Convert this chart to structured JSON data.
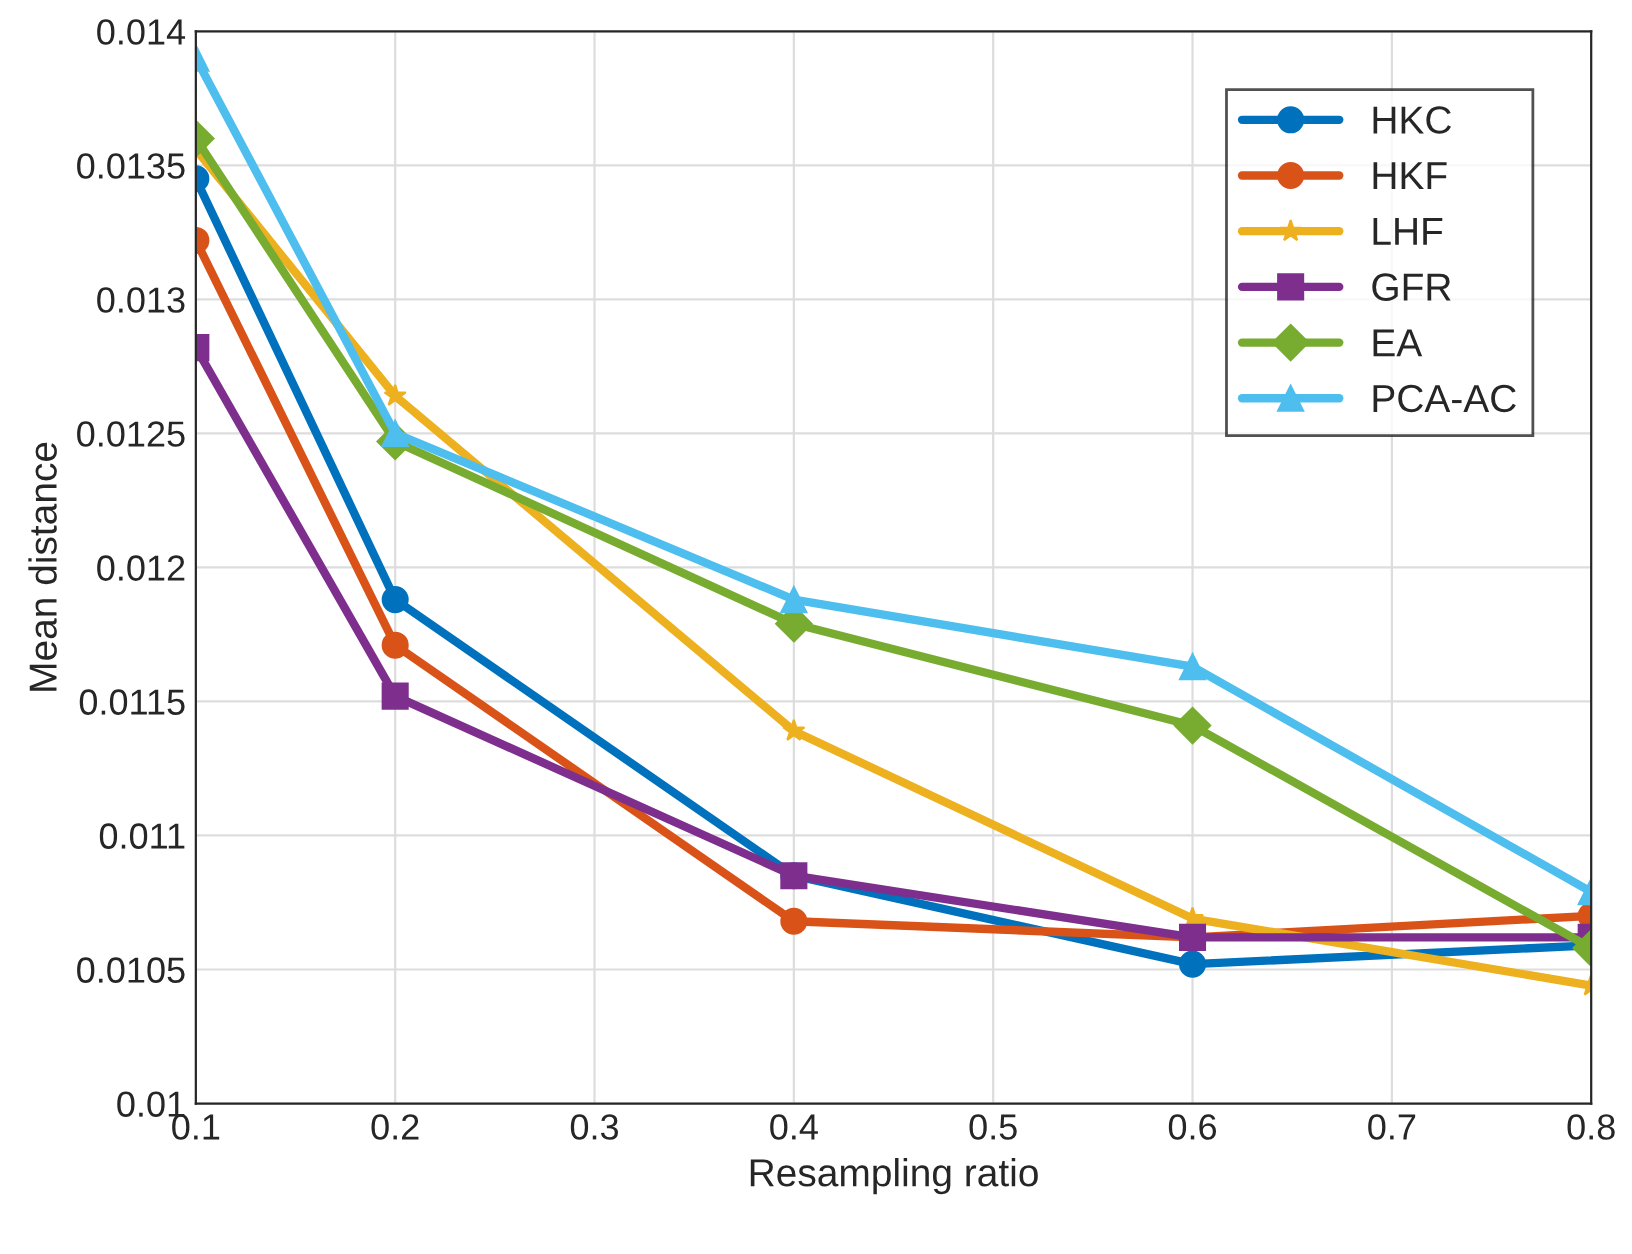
{
  "chart_data": {
    "type": "line",
    "xlabel": "Resampling ratio",
    "ylabel": "Mean distance",
    "x": [
      0.1,
      0.2,
      0.4,
      0.6,
      0.8
    ],
    "series": [
      {
        "name": "HKC",
        "color": "#0072bd",
        "marker": "circle",
        "values": [
          0.01345,
          0.01188,
          0.01085,
          0.01052,
          0.01059
        ]
      },
      {
        "name": "HKF",
        "color": "#d95319",
        "marker": "circle",
        "values": [
          0.01322,
          0.01171,
          0.01068,
          0.01062,
          0.0107
        ]
      },
      {
        "name": "LHF",
        "color": "#edb120",
        "marker": "star",
        "values": [
          0.01356,
          0.01264,
          0.01139,
          0.01069,
          0.01044
        ]
      },
      {
        "name": "GFR",
        "color": "#7e2f8e",
        "marker": "square",
        "values": [
          0.01282,
          0.01152,
          0.01085,
          0.01062,
          0.01062
        ]
      },
      {
        "name": "EA",
        "color": "#77ac30",
        "marker": "diamond",
        "values": [
          0.0136,
          0.01247,
          0.01179,
          0.01141,
          0.01058
        ]
      },
      {
        "name": "PCA-AC",
        "color": "#4dbeee",
        "marker": "triangle",
        "values": [
          0.0139,
          0.0125,
          0.01188,
          0.01163,
          0.01079
        ]
      }
    ],
    "xlim": [
      0.1,
      0.8
    ],
    "xticks": [
      0.1,
      0.2,
      0.3,
      0.4,
      0.5,
      0.6,
      0.7,
      0.8
    ],
    "ylim": [
      0.01,
      0.014
    ],
    "yticks": [
      0.01,
      0.0105,
      0.011,
      0.0115,
      0.012,
      0.0125,
      0.013,
      0.0135,
      0.014
    ],
    "grid": true,
    "legend": "top right",
    "line_style": "solid"
  }
}
